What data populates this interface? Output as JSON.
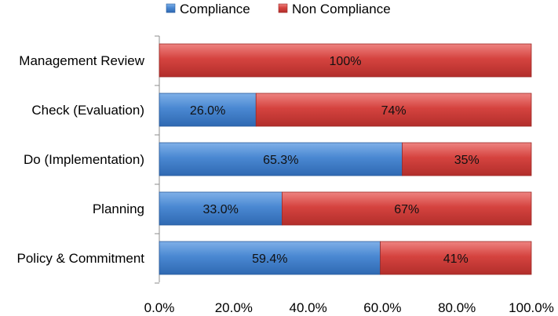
{
  "chart_data": {
    "type": "bar",
    "orientation": "horizontal",
    "stacked": true,
    "categories": [
      "Management Review",
      "Check (Evaluation)",
      "Do (Implementation)",
      "Planning",
      "Policy & Commitment"
    ],
    "series": [
      {
        "name": "Compliance",
        "color": "#3F7FCB",
        "values": [
          0,
          26.0,
          65.3,
          33.0,
          59.4
        ],
        "labels": [
          "",
          "26.0%",
          "65.3%",
          "33.0%",
          "59.4%"
        ]
      },
      {
        "name": "Non Compliance",
        "color": "#D03D3A",
        "values": [
          100,
          74,
          34.7,
          67,
          40.6
        ],
        "labels": [
          "100%",
          "74%",
          "35%",
          "67%",
          "41%"
        ]
      }
    ],
    "xlim": [
      0,
      100
    ],
    "xticks": [
      "0.0%",
      "20.0%",
      "40.0%",
      "60.0%",
      "80.0%",
      "100.0%"
    ],
    "title": "",
    "xlabel": "",
    "ylabel": "",
    "legend": "top-center",
    "grid": false
  }
}
